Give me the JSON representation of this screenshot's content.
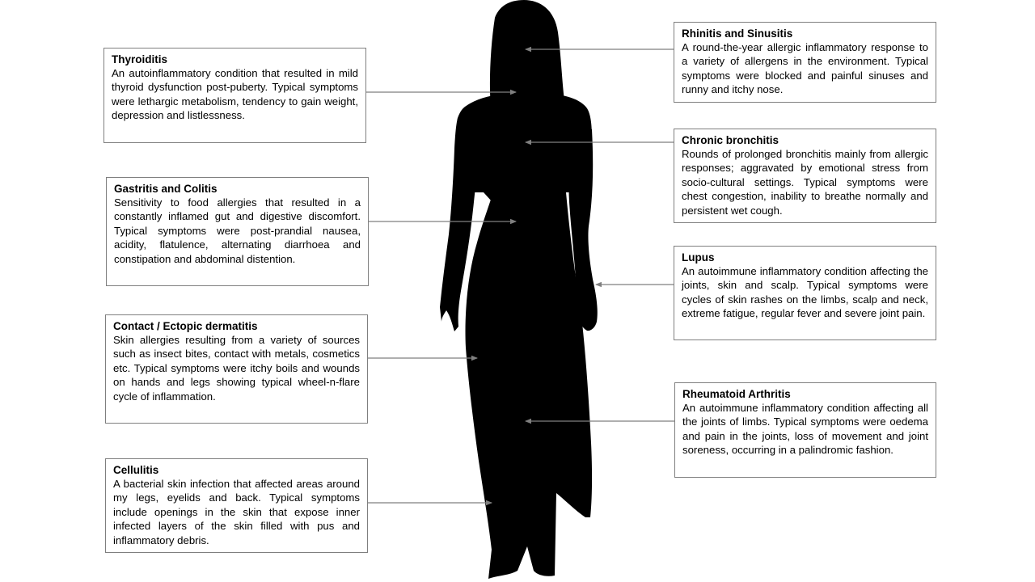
{
  "colors": {
    "silhouette": "#000000",
    "arrow": "#7f7f7f",
    "box_border": "#7f7f7f",
    "background": "#ffffff"
  },
  "conditions": [
    {
      "key": "thyroiditis",
      "title": "Thyroiditis",
      "description": "An autoinflammatory condition that resulted in mild thyroid dysfunction post-puberty. Typical symptoms were lethargic metabolism, tendency to gain weight, depression and listlessness."
    },
    {
      "key": "gastritis-colitis",
      "title": "Gastritis and Colitis",
      "description": "Sensitivity to food allergies that resulted in a constantly inflamed gut and digestive discomfort. Typical symptoms were post-prandial nausea, acidity, flatulence, alternating diarrhoea and constipation and abdominal distention."
    },
    {
      "key": "contact-dermatitis",
      "title": "Contact / Ectopic dermatitis",
      "description": "Skin allergies resulting from a variety of sources such as insect bites, contact with metals, cosmetics etc. Typical symptoms were itchy boils and wounds on hands and legs showing typical wheel-n-flare cycle of inflammation."
    },
    {
      "key": "cellulitis",
      "title": "Cellulitis",
      "description": "A bacterial skin infection that affected areas around my legs, eyelids and back. Typical symptoms include openings in the skin that expose inner infected layers of the skin filled with pus and inflammatory debris."
    },
    {
      "key": "rhinitis-sinusitis",
      "title": "Rhinitis and Sinusitis",
      "description": "A round-the-year allergic inflammatory response to a variety of allergens in the environment. Typical symptoms were blocked and painful sinuses and runny and itchy nose."
    },
    {
      "key": "chronic-bronchitis",
      "title": "Chronic bronchitis",
      "description": "Rounds of prolonged bronchitis mainly from allergic responses; aggravated by emotional stress from socio-cultural settings. Typical symptoms were chest congestion, inability to breathe normally and persistent wet cough."
    },
    {
      "key": "lupus",
      "title": "Lupus",
      "description": "An autoimmune inflammatory condition affecting the joints, skin and scalp. Typical symptoms were cycles of skin rashes on the limbs, scalp and neck, extreme fatigue, regular fever and severe joint pain."
    },
    {
      "key": "rheumatoid-arthritis",
      "title": "Rheumatoid Arthritis",
      "description": "An autoimmune inflammatory condition affecting all the joints of limbs. Typical symptoms were oedema and pain in the joints, loss of movement and joint soreness, occurring in a palindromic fashion."
    }
  ]
}
